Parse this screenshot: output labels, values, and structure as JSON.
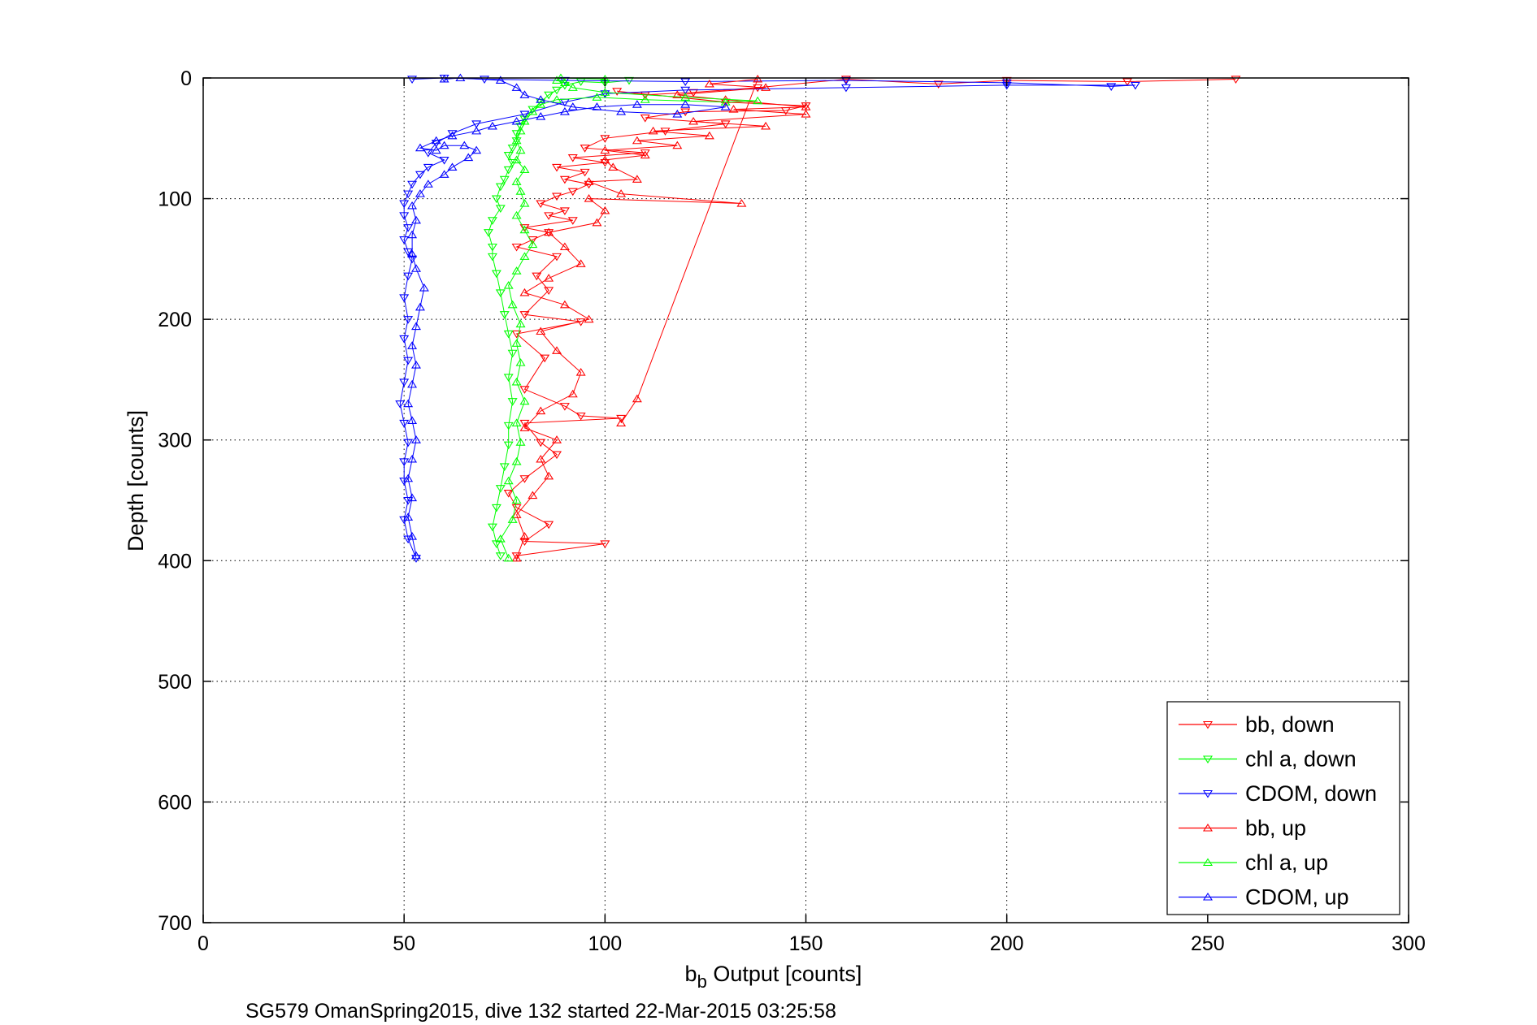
{
  "chart_data": {
    "type": "scatter",
    "xlabel_main": "b",
    "xlabel_sub": "b",
    "xlabel_rest": " Output [counts]",
    "ylabel": "Depth [counts]",
    "caption": "SG579 OmanSpring2015, dive 132 started 22-Mar-2015 03:25:58",
    "xlim": [
      0,
      300
    ],
    "ylim": [
      0,
      700
    ],
    "y_reversed": true,
    "grid": true,
    "legend_placement": "bottom-right",
    "xticks": [
      0,
      50,
      100,
      150,
      200,
      250,
      300
    ],
    "yticks": [
      0,
      100,
      200,
      300,
      400,
      500,
      600,
      700
    ],
    "series": [
      {
        "name": "bb, down",
        "color": "#ff0000",
        "marker": "triangle-down",
        "lines": true,
        "points": [
          [
            257,
            1
          ],
          [
            230,
            3
          ],
          [
            200,
            2
          ],
          [
            183,
            5
          ],
          [
            160,
            1
          ],
          [
            138,
            8
          ],
          [
            122,
            12
          ],
          [
            110,
            14
          ],
          [
            103,
            11
          ],
          [
            130,
            20
          ],
          [
            150,
            23
          ],
          [
            145,
            27
          ],
          [
            120,
            28
          ],
          [
            110,
            33
          ],
          [
            130,
            38
          ],
          [
            115,
            44
          ],
          [
            100,
            50
          ],
          [
            95,
            58
          ],
          [
            110,
            62
          ],
          [
            92,
            66
          ],
          [
            100,
            70
          ],
          [
            88,
            74
          ],
          [
            95,
            78
          ],
          [
            90,
            84
          ],
          [
            96,
            88
          ],
          [
            92,
            94
          ],
          [
            88,
            98
          ],
          [
            84,
            104
          ],
          [
            90,
            110
          ],
          [
            86,
            114
          ],
          [
            92,
            118
          ],
          [
            80,
            124
          ],
          [
            86,
            128
          ],
          [
            82,
            134
          ],
          [
            78,
            140
          ],
          [
            88,
            148
          ],
          [
            83,
            164
          ],
          [
            86,
            176
          ],
          [
            80,
            196
          ],
          [
            94,
            202
          ],
          [
            78,
            212
          ],
          [
            85,
            232
          ],
          [
            80,
            258
          ],
          [
            90,
            272
          ],
          [
            94,
            280
          ],
          [
            104,
            282
          ],
          [
            80,
            286
          ],
          [
            84,
            302
          ],
          [
            88,
            312
          ],
          [
            80,
            332
          ],
          [
            76,
            344
          ],
          [
            78,
            356
          ],
          [
            86,
            370
          ],
          [
            80,
            384
          ],
          [
            100,
            386
          ],
          [
            78,
            396
          ]
        ]
      },
      {
        "name": "chl a, down",
        "color": "#00ff00",
        "marker": "triangle-down",
        "lines": true,
        "points": [
          [
            106,
            2
          ],
          [
            100,
            4
          ],
          [
            94,
            3
          ],
          [
            90,
            6
          ],
          [
            88,
            10
          ],
          [
            86,
            14
          ],
          [
            84,
            20
          ],
          [
            82,
            26
          ],
          [
            80,
            34
          ],
          [
            79,
            40
          ],
          [
            78,
            46
          ],
          [
            78,
            52
          ],
          [
            77,
            58
          ],
          [
            76,
            64
          ],
          [
            77,
            70
          ],
          [
            76,
            76
          ],
          [
            75,
            84
          ],
          [
            74,
            90
          ],
          [
            73,
            100
          ],
          [
            74,
            108
          ],
          [
            72,
            118
          ],
          [
            71,
            128
          ],
          [
            72,
            140
          ],
          [
            72,
            148
          ],
          [
            73,
            162
          ],
          [
            74,
            178
          ],
          [
            75,
            196
          ],
          [
            76,
            212
          ],
          [
            77,
            228
          ],
          [
            76,
            248
          ],
          [
            77,
            268
          ],
          [
            76,
            288
          ],
          [
            76,
            304
          ],
          [
            75,
            322
          ],
          [
            74,
            340
          ],
          [
            73,
            356
          ],
          [
            72,
            372
          ],
          [
            73,
            386
          ],
          [
            74,
            396
          ]
        ]
      },
      {
        "name": "CDOM, down",
        "color": "#0000ff",
        "marker": "triangle-down",
        "lines": true,
        "points": [
          [
            52,
            1
          ],
          [
            60,
            0
          ],
          [
            70,
            1
          ],
          [
            90,
            2
          ],
          [
            120,
            3
          ],
          [
            160,
            2
          ],
          [
            200,
            4
          ],
          [
            226,
            7
          ],
          [
            232,
            6
          ],
          [
            200,
            6
          ],
          [
            160,
            8
          ],
          [
            120,
            10
          ],
          [
            100,
            13
          ],
          [
            90,
            20
          ],
          [
            80,
            30
          ],
          [
            68,
            38
          ],
          [
            62,
            46
          ],
          [
            58,
            54
          ],
          [
            56,
            62
          ],
          [
            60,
            68
          ],
          [
            56,
            74
          ],
          [
            54,
            80
          ],
          [
            52,
            88
          ],
          [
            51,
            96
          ],
          [
            50,
            104
          ],
          [
            50,
            114
          ],
          [
            51,
            124
          ],
          [
            50,
            134
          ],
          [
            51,
            144
          ],
          [
            52,
            150
          ],
          [
            51,
            164
          ],
          [
            50,
            182
          ],
          [
            51,
            200
          ],
          [
            50,
            216
          ],
          [
            51,
            234
          ],
          [
            50,
            252
          ],
          [
            49,
            270
          ],
          [
            50,
            286
          ],
          [
            51,
            302
          ],
          [
            50,
            318
          ],
          [
            50,
            334
          ],
          [
            51,
            350
          ],
          [
            50,
            366
          ],
          [
            51,
            382
          ],
          [
            53,
            398
          ]
        ]
      },
      {
        "name": "bb, up",
        "color": "#ff0000",
        "marker": "triangle-up",
        "lines": true,
        "points": [
          [
            78,
            398
          ],
          [
            80,
            380
          ],
          [
            78,
            362
          ],
          [
            82,
            346
          ],
          [
            86,
            330
          ],
          [
            84,
            316
          ],
          [
            88,
            300
          ],
          [
            80,
            290
          ],
          [
            84,
            276
          ],
          [
            92,
            262
          ],
          [
            94,
            244
          ],
          [
            88,
            226
          ],
          [
            84,
            210
          ],
          [
            96,
            200
          ],
          [
            90,
            188
          ],
          [
            80,
            178
          ],
          [
            86,
            166
          ],
          [
            94,
            154
          ],
          [
            90,
            140
          ],
          [
            86,
            128
          ],
          [
            98,
            120
          ],
          [
            100,
            110
          ],
          [
            96,
            100
          ],
          [
            134,
            104
          ],
          [
            104,
            96
          ],
          [
            96,
            86
          ],
          [
            108,
            84
          ],
          [
            102,
            74
          ],
          [
            100,
            68
          ],
          [
            110,
            64
          ],
          [
            100,
            60
          ],
          [
            118,
            56
          ],
          [
            108,
            52
          ],
          [
            126,
            48
          ],
          [
            112,
            44
          ],
          [
            140,
            40
          ],
          [
            122,
            36
          ],
          [
            150,
            30
          ],
          [
            132,
            26
          ],
          [
            150,
            24
          ],
          [
            130,
            18
          ],
          [
            118,
            14
          ],
          [
            140,
            8
          ],
          [
            126,
            5
          ],
          [
            138,
            1
          ],
          [
            108,
            266
          ],
          [
            104,
            286
          ]
        ]
      },
      {
        "name": "chl a, up",
        "color": "#00ff00",
        "marker": "triangle-up",
        "lines": true,
        "points": [
          [
            76,
            398
          ],
          [
            74,
            382
          ],
          [
            77,
            366
          ],
          [
            78,
            350
          ],
          [
            76,
            334
          ],
          [
            78,
            318
          ],
          [
            79,
            302
          ],
          [
            78,
            286
          ],
          [
            80,
            268
          ],
          [
            78,
            252
          ],
          [
            79,
            236
          ],
          [
            78,
            220
          ],
          [
            79,
            204
          ],
          [
            77,
            188
          ],
          [
            76,
            172
          ],
          [
            78,
            160
          ],
          [
            80,
            148
          ],
          [
            82,
            138
          ],
          [
            80,
            126
          ],
          [
            78,
            114
          ],
          [
            80,
            104
          ],
          [
            79,
            94
          ],
          [
            78,
            86
          ],
          [
            80,
            76
          ],
          [
            78,
            68
          ],
          [
            79,
            60
          ],
          [
            78,
            52
          ],
          [
            79,
            44
          ],
          [
            80,
            36
          ],
          [
            82,
            28
          ],
          [
            84,
            22
          ],
          [
            88,
            18
          ],
          [
            98,
            16
          ],
          [
            110,
            18
          ],
          [
            130,
            20
          ],
          [
            138,
            19
          ],
          [
            120,
            16
          ],
          [
            100,
            12
          ],
          [
            92,
            8
          ],
          [
            90,
            4
          ],
          [
            88,
            2
          ],
          [
            89,
            0
          ],
          [
            100,
            1
          ]
        ]
      },
      {
        "name": "CDOM, up",
        "color": "#0000ff",
        "marker": "triangle-up",
        "lines": true,
        "points": [
          [
            53,
            396
          ],
          [
            52,
            380
          ],
          [
            51,
            364
          ],
          [
            52,
            348
          ],
          [
            51,
            332
          ],
          [
            52,
            316
          ],
          [
            53,
            300
          ],
          [
            52,
            284
          ],
          [
            51,
            270
          ],
          [
            52,
            254
          ],
          [
            53,
            238
          ],
          [
            52,
            222
          ],
          [
            53,
            206
          ],
          [
            54,
            190
          ],
          [
            55,
            174
          ],
          [
            53,
            158
          ],
          [
            52,
            146
          ],
          [
            52,
            130
          ],
          [
            53,
            118
          ],
          [
            52,
            106
          ],
          [
            54,
            96
          ],
          [
            56,
            88
          ],
          [
            60,
            80
          ],
          [
            62,
            74
          ],
          [
            66,
            66
          ],
          [
            68,
            60
          ],
          [
            65,
            56
          ],
          [
            60,
            56
          ],
          [
            58,
            60
          ],
          [
            54,
            58
          ],
          [
            58,
            52
          ],
          [
            62,
            48
          ],
          [
            68,
            44
          ],
          [
            72,
            40
          ],
          [
            78,
            36
          ],
          [
            84,
            32
          ],
          [
            90,
            28
          ],
          [
            98,
            24
          ],
          [
            108,
            22
          ],
          [
            120,
            22
          ],
          [
            130,
            24
          ],
          [
            118,
            30
          ],
          [
            104,
            28
          ],
          [
            92,
            24
          ],
          [
            84,
            18
          ],
          [
            80,
            14
          ],
          [
            78,
            8
          ],
          [
            74,
            2
          ],
          [
            64,
            0
          ],
          [
            60,
            1
          ]
        ]
      }
    ]
  }
}
